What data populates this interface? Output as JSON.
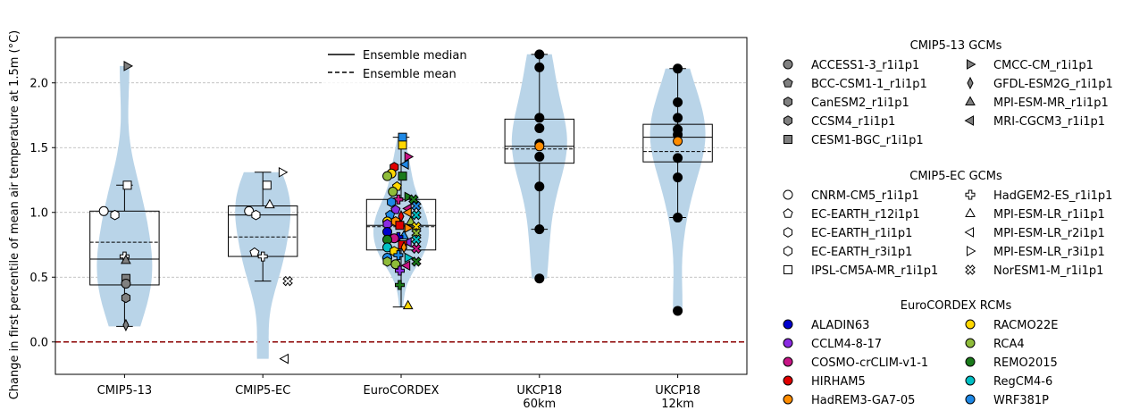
{
  "chart_data": {
    "type": "violin",
    "ylabel": "Change in first percentile of mean air temperature at 1.5m (°C)",
    "ylim": [
      -0.25,
      2.35
    ],
    "yticks": [
      "0.0",
      "0.5",
      "1.0",
      "1.5",
      "2.0"
    ],
    "grid": "horizontal dashed",
    "zero_line_color": "#8b0000",
    "violin_color": "#b9d4e8",
    "legend_main": {
      "position": "top-center",
      "median_label": "Ensemble median",
      "mean_label": "Ensemble mean"
    },
    "groups": [
      {
        "label": [
          "CMIP5-13"
        ],
        "box": {
          "q1": 0.44,
          "median": 0.64,
          "q3": 1.01,
          "whislo": 0.12,
          "whishi": 1.21
        },
        "mean": 0.77,
        "violin_min": 0.12,
        "violin_max": 2.13
      },
      {
        "label": [
          "CMIP5-EC"
        ],
        "box": {
          "q1": 0.66,
          "median": 0.98,
          "q3": 1.05,
          "whislo": 0.47,
          "whishi": 1.31
        },
        "mean": 0.81,
        "violin_min": -0.13,
        "violin_max": 1.31
      },
      {
        "label": [
          "EuroCORDEX"
        ],
        "box": {
          "q1": 0.71,
          "median": 0.9,
          "q3": 1.1,
          "whislo": 0.27,
          "whishi": 1.58
        },
        "mean": 0.89,
        "violin_min": 0.27,
        "violin_max": 1.58
      },
      {
        "label": [
          "UKCP18",
          "60km"
        ],
        "box": {
          "q1": 1.38,
          "median": 1.51,
          "q3": 1.72,
          "whislo": 0.87,
          "whishi": 2.22
        },
        "mean": 1.49,
        "violin_min": 0.49,
        "violin_max": 2.22
      },
      {
        "label": [
          "UKCP18",
          "12km"
        ],
        "box": {
          "q1": 1.39,
          "median": 1.58,
          "q3": 1.68,
          "whislo": 0.96,
          "whishi": 2.11
        },
        "mean": 1.47,
        "violin_min": 0.24,
        "violin_max": 2.11
      }
    ],
    "points": [
      {
        "g": 0,
        "dx": 0.02,
        "y": 2.13,
        "m": "tri-right",
        "f": "#808080"
      },
      {
        "g": 0,
        "dx": 0.02,
        "y": 1.21,
        "m": "square",
        "f": "#ffffff"
      },
      {
        "g": 0,
        "dx": -0.15,
        "y": 1.01,
        "m": "circle",
        "f": "#ffffff"
      },
      {
        "g": 0,
        "dx": -0.07,
        "y": 0.98,
        "m": "hexagon",
        "f": "#ffffff"
      },
      {
        "g": 0,
        "dx": 0.0,
        "y": 0.66,
        "m": "plus",
        "f": "#ffffff"
      },
      {
        "g": 0,
        "dx": 0.01,
        "y": 0.63,
        "m": "tri-up",
        "f": "#808080"
      },
      {
        "g": 0,
        "dx": 0.01,
        "y": 0.49,
        "m": "square",
        "f": "#808080"
      },
      {
        "g": 0,
        "dx": 0.01,
        "y": 0.45,
        "m": "circle",
        "f": "#808080"
      },
      {
        "g": 0,
        "dx": 0.01,
        "y": 0.34,
        "m": "hexagon",
        "f": "#808080"
      },
      {
        "g": 0,
        "dx": 0.01,
        "y": 0.13,
        "m": "diamond",
        "f": "#808080"
      },
      {
        "g": 1,
        "dx": 0.14,
        "y": 1.31,
        "m": "tri-right",
        "f": "#ffffff"
      },
      {
        "g": 1,
        "dx": 0.03,
        "y": 1.21,
        "m": "square",
        "f": "#ffffff"
      },
      {
        "g": 1,
        "dx": 0.05,
        "y": 1.06,
        "m": "tri-up",
        "f": "#ffffff"
      },
      {
        "g": 1,
        "dx": -0.1,
        "y": 1.01,
        "m": "circle",
        "f": "#ffffff"
      },
      {
        "g": 1,
        "dx": -0.05,
        "y": 0.98,
        "m": "hexagon",
        "f": "#ffffff"
      },
      {
        "g": 1,
        "dx": -0.06,
        "y": 0.69,
        "m": "pentagon",
        "f": "#ffffff"
      },
      {
        "g": 1,
        "dx": 0.0,
        "y": 0.66,
        "m": "plus",
        "f": "#ffffff"
      },
      {
        "g": 1,
        "dx": 0.18,
        "y": 0.47,
        "m": "xfill",
        "f": "#ffffff"
      },
      {
        "g": 1,
        "dx": 0.16,
        "y": -0.13,
        "m": "tri-left",
        "f": "#ffffff"
      },
      {
        "g": 2,
        "dx": 0.01,
        "y": 1.58,
        "m": "square",
        "f": "#1e88e5"
      },
      {
        "g": 2,
        "dx": 0.01,
        "y": 1.52,
        "m": "square",
        "f": "#ffd700"
      },
      {
        "g": 2,
        "dx": 0.05,
        "y": 1.43,
        "m": "tri-right",
        "f": "#c71585"
      },
      {
        "g": 2,
        "dx": 0.03,
        "y": 1.37,
        "m": "tri-left",
        "f": "#1e88e5"
      },
      {
        "g": 2,
        "dx": -0.05,
        "y": 1.35,
        "m": "hexagon",
        "f": "#e00000"
      },
      {
        "g": 2,
        "dx": -0.07,
        "y": 1.3,
        "m": "circle",
        "f": "#ffd700"
      },
      {
        "g": 2,
        "dx": -0.1,
        "y": 1.28,
        "m": "circle",
        "f": "#8fbc3a"
      },
      {
        "g": 2,
        "dx": 0.01,
        "y": 1.28,
        "m": "square",
        "f": "#1a7a1a"
      },
      {
        "g": 2,
        "dx": -0.03,
        "y": 1.2,
        "m": "pentagon",
        "f": "#ffd700"
      },
      {
        "g": 2,
        "dx": -0.06,
        "y": 1.16,
        "m": "circle",
        "f": "#8fbc3a"
      },
      {
        "g": 2,
        "dx": 0.05,
        "y": 1.12,
        "m": "tri-right",
        "f": "#1a7a1a"
      },
      {
        "g": 2,
        "dx": 0.09,
        "y": 1.1,
        "m": "xfill",
        "f": "#1a7a1a"
      },
      {
        "g": 2,
        "dx": -0.02,
        "y": 1.1,
        "m": "plus",
        "f": "#c71585"
      },
      {
        "g": 2,
        "dx": -0.07,
        "y": 1.08,
        "m": "hexagon",
        "f": "#1e88e5"
      },
      {
        "g": 2,
        "dx": 0.11,
        "y": 1.05,
        "m": "xfill",
        "f": "#1e88e5"
      },
      {
        "g": 2,
        "dx": 0.05,
        "y": 1.03,
        "m": "tri-left",
        "f": "#c71585"
      },
      {
        "g": 2,
        "dx": -0.04,
        "y": 1.02,
        "m": "pentagon",
        "f": "#8a2be2"
      },
      {
        "g": 2,
        "dx": 0.05,
        "y": 1.0,
        "m": "tri-left",
        "f": "#ff8c00"
      },
      {
        "g": 2,
        "dx": -0.08,
        "y": 0.98,
        "m": "pentagon",
        "f": "#1e88e5"
      },
      {
        "g": 2,
        "dx": 0.11,
        "y": 0.98,
        "m": "xfill",
        "f": "#00bfc4"
      },
      {
        "g": 2,
        "dx": 0.0,
        "y": 0.97,
        "m": "diamond",
        "f": "#e00000"
      },
      {
        "g": 2,
        "dx": -0.1,
        "y": 0.93,
        "m": "circle",
        "f": "#ffd700"
      },
      {
        "g": 2,
        "dx": -0.04,
        "y": 0.93,
        "m": "hexagon",
        "f": "#ff8c00"
      },
      {
        "g": 2,
        "dx": 0.07,
        "y": 0.93,
        "m": "tri-up",
        "f": "#8fbc3a"
      },
      {
        "g": 2,
        "dx": -0.1,
        "y": 0.91,
        "m": "hexagon",
        "f": "#8a2be2"
      },
      {
        "g": 2,
        "dx": -0.01,
        "y": 0.9,
        "m": "square",
        "f": "#e00000"
      },
      {
        "g": 2,
        "dx": 0.11,
        "y": 0.89,
        "m": "xfill",
        "f": "#ffd700"
      },
      {
        "g": 2,
        "dx": 0.05,
        "y": 0.88,
        "m": "tri-right",
        "f": "#ff8c00"
      },
      {
        "g": 2,
        "dx": -0.1,
        "y": 0.85,
        "m": "circle",
        "f": "#0000cd"
      },
      {
        "g": 2,
        "dx": 0.11,
        "y": 0.84,
        "m": "xfill",
        "f": "#8fbc3a"
      },
      {
        "g": 2,
        "dx": 0.02,
        "y": 0.82,
        "m": "tri-up",
        "f": "#1e88e5"
      },
      {
        "g": 2,
        "dx": -0.02,
        "y": 0.81,
        "m": "plus",
        "f": "#0000cd"
      },
      {
        "g": 2,
        "dx": -0.05,
        "y": 0.8,
        "m": "circle",
        "f": "#c71585"
      },
      {
        "g": 2,
        "dx": 0.11,
        "y": 0.79,
        "m": "xfill",
        "f": "#00bfc4"
      },
      {
        "g": 2,
        "dx": -0.1,
        "y": 0.79,
        "m": "circle",
        "f": "#1a7a1a"
      },
      {
        "g": 2,
        "dx": 0.05,
        "y": 0.77,
        "m": "tri-left",
        "f": "#8a2be2"
      },
      {
        "g": 2,
        "dx": 0.01,
        "y": 0.75,
        "m": "square",
        "f": "#e00000"
      },
      {
        "g": 2,
        "dx": -0.1,
        "y": 0.73,
        "m": "circle",
        "f": "#00bfc4"
      },
      {
        "g": 2,
        "dx": 0.02,
        "y": 0.73,
        "m": "diamond",
        "f": "#ff8c00"
      },
      {
        "g": 2,
        "dx": 0.11,
        "y": 0.72,
        "m": "xfill",
        "f": "#c71585"
      },
      {
        "g": 2,
        "dx": -0.05,
        "y": 0.7,
        "m": "hexagon",
        "f": "#ffd700"
      },
      {
        "g": 2,
        "dx": -0.02,
        "y": 0.67,
        "m": "plus",
        "f": "#1e88e5"
      },
      {
        "g": 2,
        "dx": -0.1,
        "y": 0.65,
        "m": "circle",
        "f": "#1e88e5"
      },
      {
        "g": 2,
        "dx": 0.05,
        "y": 0.65,
        "m": "tri-right",
        "f": "#00bfc4"
      },
      {
        "g": 2,
        "dx": -0.1,
        "y": 0.62,
        "m": "hexagon",
        "f": "#8fbc3a"
      },
      {
        "g": 2,
        "dx": 0.11,
        "y": 0.62,
        "m": "xfill",
        "f": "#1a7a1a"
      },
      {
        "g": 2,
        "dx": -0.04,
        "y": 0.6,
        "m": "circle",
        "f": "#8fbc3a"
      },
      {
        "g": 2,
        "dx": 0.04,
        "y": 0.59,
        "m": "tri-left",
        "f": "#c71585"
      },
      {
        "g": 2,
        "dx": -0.01,
        "y": 0.55,
        "m": "plus",
        "f": "#8a2be2"
      },
      {
        "g": 2,
        "dx": -0.01,
        "y": 0.44,
        "m": "plus",
        "f": "#1a7a1a"
      },
      {
        "g": 2,
        "dx": 0.05,
        "y": 0.28,
        "m": "tri-up",
        "f": "#ffd700"
      },
      {
        "g": 3,
        "dx": 0,
        "y": 2.22,
        "m": "circle",
        "f": "#000000"
      },
      {
        "g": 3,
        "dx": 0,
        "y": 2.12,
        "m": "circle",
        "f": "#000000"
      },
      {
        "g": 3,
        "dx": 0,
        "y": 1.73,
        "m": "circle",
        "f": "#000000"
      },
      {
        "g": 3,
        "dx": 0,
        "y": 1.65,
        "m": "circle",
        "f": "#000000"
      },
      {
        "g": 3,
        "dx": 0,
        "y": 1.53,
        "m": "circle",
        "f": "#000000"
      },
      {
        "g": 3,
        "dx": 0,
        "y": 1.51,
        "m": "circle",
        "f": "#ff8c00"
      },
      {
        "g": 3,
        "dx": 0,
        "y": 1.43,
        "m": "circle",
        "f": "#000000"
      },
      {
        "g": 3,
        "dx": 0,
        "y": 1.2,
        "m": "circle",
        "f": "#000000"
      },
      {
        "g": 3,
        "dx": 0,
        "y": 0.87,
        "m": "circle",
        "f": "#000000"
      },
      {
        "g": 3,
        "dx": 0,
        "y": 0.49,
        "m": "circle",
        "f": "#000000"
      },
      {
        "g": 4,
        "dx": 0,
        "y": 2.11,
        "m": "circle",
        "f": "#000000"
      },
      {
        "g": 4,
        "dx": 0,
        "y": 1.85,
        "m": "circle",
        "f": "#000000"
      },
      {
        "g": 4,
        "dx": 0,
        "y": 1.73,
        "m": "circle",
        "f": "#000000"
      },
      {
        "g": 4,
        "dx": 0,
        "y": 1.64,
        "m": "circle",
        "f": "#000000"
      },
      {
        "g": 4,
        "dx": 0,
        "y": 1.6,
        "m": "circle",
        "f": "#000000"
      },
      {
        "g": 4,
        "dx": 0,
        "y": 1.55,
        "m": "circle",
        "f": "#ff8c00"
      },
      {
        "g": 4,
        "dx": 0,
        "y": 1.42,
        "m": "circle",
        "f": "#000000"
      },
      {
        "g": 4,
        "dx": 0,
        "y": 1.27,
        "m": "circle",
        "f": "#000000"
      },
      {
        "g": 4,
        "dx": 0,
        "y": 0.96,
        "m": "circle",
        "f": "#000000"
      },
      {
        "g": 4,
        "dx": 0,
        "y": 0.24,
        "m": "circle",
        "f": "#000000"
      }
    ]
  },
  "legend_sections": [
    {
      "title": "CMIP5-13 GCMs",
      "cols": [
        [
          {
            "label": "ACCESS1-3_r1i1p1",
            "m": "circle",
            "f": "#808080"
          },
          {
            "label": "BCC-CSM1-1_r1i1p1",
            "m": "pentagon",
            "f": "#808080"
          },
          {
            "label": "CanESM2_r1i1p1",
            "m": "hexagon",
            "f": "#808080"
          },
          {
            "label": "CCSM4_r1i1p1",
            "m": "hexagon",
            "f": "#808080"
          },
          {
            "label": "CESM1-BGC_r1i1p1",
            "m": "square",
            "f": "#808080"
          }
        ],
        [
          {
            "label": "CMCC-CM_r1i1p1",
            "m": "tri-right",
            "f": "#808080"
          },
          {
            "label": "GFDL-ESM2G_r1i1p1",
            "m": "diamond",
            "f": "#808080"
          },
          {
            "label": "MPI-ESM-MR_r1i1p1",
            "m": "tri-up",
            "f": "#808080"
          },
          {
            "label": "MRI-CGCM3_r1i1p1",
            "m": "tri-left",
            "f": "#808080"
          }
        ]
      ]
    },
    {
      "title": "CMIP5-EC GCMs",
      "cols": [
        [
          {
            "label": "CNRM-CM5_r1i1p1",
            "m": "circle",
            "f": "#ffffff"
          },
          {
            "label": "EC-EARTH_r12i1p1",
            "m": "pentagon",
            "f": "#ffffff"
          },
          {
            "label": "EC-EARTH_r1i1p1",
            "m": "hexagon",
            "f": "#ffffff"
          },
          {
            "label": "EC-EARTH_r3i1p1",
            "m": "hexagon",
            "f": "#ffffff"
          },
          {
            "label": "IPSL-CM5A-MR_r1i1p1",
            "m": "square",
            "f": "#ffffff"
          }
        ],
        [
          {
            "label": "HadGEM2-ES_r1i1p1",
            "m": "plus",
            "f": "#ffffff"
          },
          {
            "label": "MPI-ESM-LR_r1i1p1",
            "m": "tri-up",
            "f": "#ffffff"
          },
          {
            "label": "MPI-ESM-LR_r2i1p1",
            "m": "tri-left",
            "f": "#ffffff"
          },
          {
            "label": "MPI-ESM-LR_r3i1p1",
            "m": "tri-right",
            "f": "#ffffff"
          },
          {
            "label": "NorESM1-M_r1i1p1",
            "m": "xfill",
            "f": "#ffffff"
          }
        ]
      ]
    },
    {
      "title": "EuroCORDEX RCMs",
      "cols": [
        [
          {
            "label": "ALADIN63",
            "m": "circle",
            "f": "#0000cd"
          },
          {
            "label": "CCLM4-8-17",
            "m": "circle",
            "f": "#8a2be2"
          },
          {
            "label": "COSMO-crCLIM-v1-1",
            "m": "circle",
            "f": "#c71585"
          },
          {
            "label": "HIRHAM5",
            "m": "circle",
            "f": "#e00000"
          },
          {
            "label": "HadREM3-GA7-05",
            "m": "circle",
            "f": "#ff8c00"
          }
        ],
        [
          {
            "label": "RACMO22E",
            "m": "circle",
            "f": "#ffd700"
          },
          {
            "label": "RCA4",
            "m": "circle",
            "f": "#8fbc3a"
          },
          {
            "label": "REMO2015",
            "m": "circle",
            "f": "#1a7a1a"
          },
          {
            "label": "RegCM4-6",
            "m": "circle",
            "f": "#00bfc4"
          },
          {
            "label": "WRF381P",
            "m": "circle",
            "f": "#1e88e5"
          }
        ]
      ]
    }
  ]
}
